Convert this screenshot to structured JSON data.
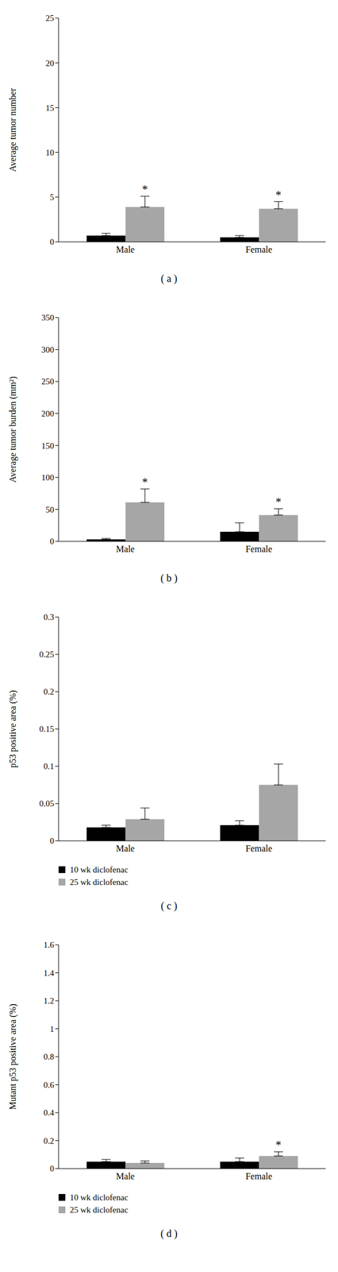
{
  "chart_data": [
    {
      "type": "bar",
      "title": "( a )",
      "y_label": "Average tumor number",
      "categories": [
        "Male",
        "Female"
      ],
      "ylim": [
        0,
        25
      ],
      "yticks": [
        0,
        5,
        10,
        15,
        20,
        25
      ],
      "grid": false,
      "series": [
        {
          "name": "10 wk diclofenac",
          "color": "#000000",
          "values": [
            0.7,
            0.5
          ],
          "errors": [
            0.25,
            0.2
          ],
          "annotations": [
            null,
            null
          ]
        },
        {
          "name": "25 wk diclofenac",
          "color": "#a6a6a6",
          "values": [
            3.9,
            3.7
          ],
          "errors": [
            1.2,
            0.8
          ],
          "annotations": [
            "*",
            "*"
          ]
        }
      ]
    },
    {
      "type": "bar",
      "title": "( b )",
      "y_label": "Average tumor burden (mm²)",
      "categories": [
        "Male",
        "Female"
      ],
      "ylim": [
        0,
        350
      ],
      "yticks": [
        0,
        50,
        100,
        150,
        200,
        250,
        300,
        350
      ],
      "grid": false,
      "series": [
        {
          "name": "10 wk diclofenac",
          "color": "#000000",
          "values": [
            3,
            15
          ],
          "errors": [
            1.5,
            14
          ],
          "annotations": [
            null,
            null
          ]
        },
        {
          "name": "25 wk diclofenac",
          "color": "#a6a6a6",
          "values": [
            61,
            41
          ],
          "errors": [
            21,
            10
          ],
          "annotations": [
            "*",
            "*"
          ]
        }
      ]
    },
    {
      "type": "bar",
      "title": "( c )",
      "y_label": "p53 positive area (%)",
      "categories": [
        "Male",
        "Female"
      ],
      "ylim": [
        0,
        0.3
      ],
      "yticks": [
        0,
        0.05,
        0.1,
        0.15,
        0.2,
        0.25,
        0.3
      ],
      "grid": false,
      "legend": "bottom",
      "series": [
        {
          "name": "10 wk diclofenac",
          "color": "#000000",
          "values": [
            0.018,
            0.021
          ],
          "errors": [
            0.003,
            0.006
          ],
          "annotations": [
            null,
            null
          ]
        },
        {
          "name": "25 wk diclofenac",
          "color": "#a6a6a6",
          "values": [
            0.029,
            0.075
          ],
          "errors": [
            0.015,
            0.028
          ],
          "annotations": [
            null,
            null
          ]
        }
      ]
    },
    {
      "type": "bar",
      "title": "( d )",
      "y_label": "Mutant p53 positive area (%)",
      "categories": [
        "Male",
        "Female"
      ],
      "ylim": [
        0,
        1.6
      ],
      "yticks": [
        0,
        0.2,
        0.4,
        0.6,
        0.8,
        1,
        1.2,
        1.4,
        1.6
      ],
      "grid": false,
      "legend": "bottom",
      "series": [
        {
          "name": "10 wk diclofenac",
          "color": "#000000",
          "values": [
            0.05,
            0.05
          ],
          "errors": [
            0.015,
            0.025
          ],
          "annotations": [
            null,
            null
          ]
        },
        {
          "name": "25 wk diclofenac",
          "color": "#a6a6a6",
          "values": [
            0.04,
            0.09
          ],
          "errors": [
            0.015,
            0.03
          ],
          "annotations": [
            null,
            "*"
          ]
        }
      ]
    }
  ]
}
